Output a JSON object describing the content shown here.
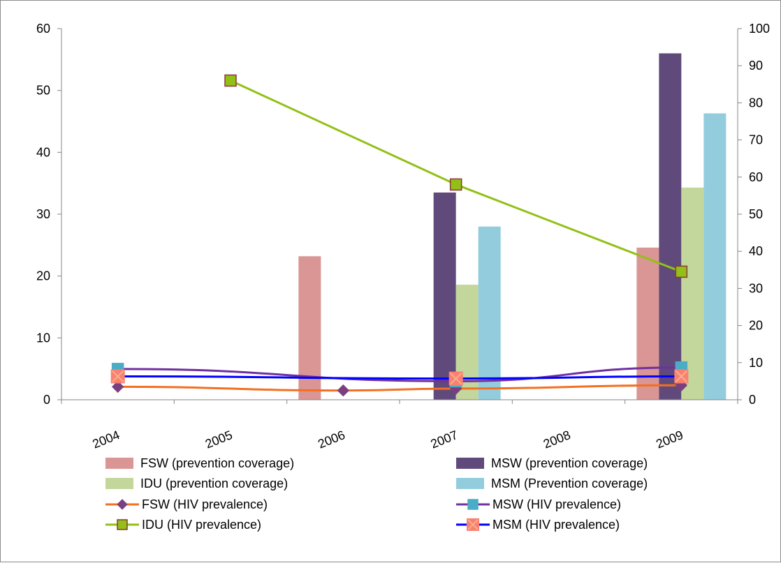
{
  "chart_data": {
    "type": "bar",
    "categories": [
      "2004",
      "2005",
      "2006",
      "2007",
      "2008",
      "2009"
    ],
    "y_left": {
      "ylim": [
        0,
        60
      ],
      "ticks": [
        0,
        10,
        20,
        30,
        40,
        50,
        60
      ]
    },
    "y_right": {
      "ylim": [
        0,
        100
      ],
      "ticks": [
        0,
        10,
        20,
        30,
        40,
        50,
        60,
        70,
        80,
        90,
        100
      ]
    },
    "bar_series": [
      {
        "name": "FSW (prevention coverage)",
        "color": "#d99694",
        "values": [
          null,
          null,
          23.2,
          null,
          null,
          24.6
        ]
      },
      {
        "name": "MSW (prevention coverage)",
        "color": "#604a7b",
        "values": [
          null,
          null,
          null,
          33.5,
          null,
          56.0
        ]
      },
      {
        "name": "IDU (prevention coverage)",
        "color": "#c3d69b",
        "values": [
          null,
          null,
          null,
          18.6,
          null,
          34.3
        ]
      },
      {
        "name": "MSM (Prevention coverage)",
        "color": "#93cddd",
        "values": [
          null,
          null,
          null,
          28.0,
          null,
          46.3
        ]
      }
    ],
    "line_series": [
      {
        "name": "FSW (HIV prevalence)",
        "axis": "right",
        "color": "#f36f21",
        "marker": "diamond",
        "marker_fill": "#7b3f7d",
        "values": [
          3.5,
          null,
          2.5,
          3.0,
          null,
          3.9
        ]
      },
      {
        "name": "MSW (HIV prevalence)",
        "axis": "right",
        "color": "#7030a0",
        "marker": "square",
        "marker_fill": "#4bacc6",
        "values": [
          8.3,
          null,
          null,
          5.0,
          null,
          8.7
        ]
      },
      {
        "name": "IDU (HIV prevalence)",
        "axis": "right",
        "color": "#92c016",
        "marker": "square",
        "marker_fill": "#92c016",
        "marker_stroke": "#8b3a3a",
        "values": [
          null,
          86.0,
          null,
          58.0,
          null,
          34.5
        ]
      },
      {
        "name": "MSM (HIV prevalence)",
        "axis": "right",
        "color": "#0000ff",
        "marker": "x-square",
        "marker_fill": "#fa8072",
        "values": [
          6.3,
          null,
          null,
          5.7,
          null,
          6.3
        ]
      }
    ],
    "legend_position": "bottom",
    "grid": false
  }
}
